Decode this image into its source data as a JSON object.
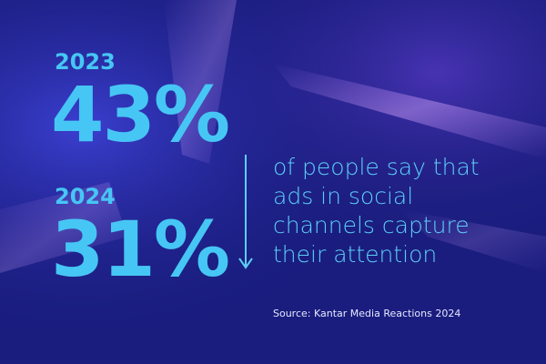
{
  "stats": [
    {
      "year": "2023",
      "value": "43%"
    },
    {
      "year": "2024",
      "value": "31%"
    }
  ],
  "description": [
    "of people say that",
    "ads in social",
    "channels capture",
    "their attention"
  ],
  "source": "Source: Kantar Media Reactions 2024"
}
